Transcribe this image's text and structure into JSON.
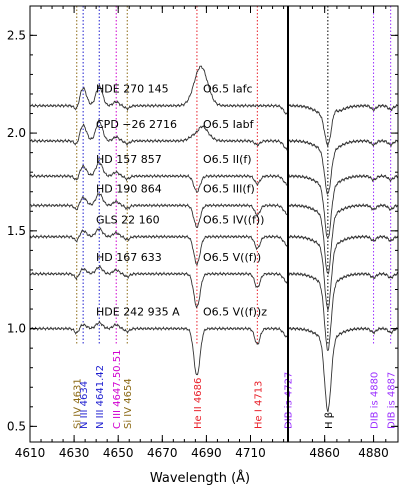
{
  "chart_data": {
    "type": "line",
    "xlabel": "Wavelength (Å)",
    "ylabel": "",
    "panels": [
      {
        "name": "left",
        "xlim": [
          4610,
          4727
        ],
        "xticks": [
          4610,
          4630,
          4650,
          4670,
          4690,
          4710
        ]
      },
      {
        "name": "right",
        "xlim": [
          4845,
          4890
        ],
        "xticks": [
          4860,
          4880
        ]
      }
    ],
    "ylim": [
      0.42,
      2.65
    ],
    "yticks": [
      0.5,
      1.0,
      1.5,
      2.0,
      2.5
    ],
    "grid": false,
    "lines": [
      {
        "label": "Si IV 4631",
        "x": 4631.2,
        "color": "#8B6914"
      },
      {
        "label": "N III 4634",
        "x": 4634.1,
        "color": "#1f1fd0"
      },
      {
        "label": "N III 4641.42",
        "x": 4641.4,
        "color": "#1f1fd0"
      },
      {
        "label": "C III 4647.50.51",
        "x": 4649.1,
        "color": "#d000d0"
      },
      {
        "label": "Si IV 4654",
        "x": 4654.1,
        "color": "#8B6914"
      },
      {
        "label": "He II 4686",
        "x": 4685.7,
        "color": "#e8202a"
      },
      {
        "label": "He I 4713",
        "x": 4713.1,
        "color": "#e8202a"
      },
      {
        "label": "DIB is 4727",
        "x": 4726.8,
        "color": "#9b30ff"
      },
      {
        "label": "H β",
        "x": 4861.3,
        "color": "#000000"
      },
      {
        "label": "DIB is 4880",
        "x": 4880.0,
        "color": "#9b30ff"
      },
      {
        "label": "DIB is 4887",
        "x": 4887.0,
        "color": "#9b30ff"
      }
    ],
    "stars": [
      {
        "name": "HDE 270 145",
        "sptype": "O6.5 Iafc",
        "offset": 1.14,
        "e4634": 0.09,
        "e4641": 0.1,
        "e4686": 0.2,
        "a4686": 0.0,
        "a4713": 0.0,
        "ahb": 0.15,
        "ehb": 0.02
      },
      {
        "name": "CPD −26 2716",
        "sptype": "O6.5 Iabf",
        "offset": 0.96,
        "e4634": 0.08,
        "e4641": 0.1,
        "e4686": 0.08,
        "a4686": 0.02,
        "a4713": 0.02,
        "ahb": 0.22,
        "ehb": 0.0
      },
      {
        "name": "HD 157 857",
        "sptype": "O6.5 II(f)",
        "offset": 0.78,
        "e4634": 0.05,
        "e4641": 0.07,
        "e4686": 0.0,
        "a4686": 0.08,
        "a4713": 0.04,
        "ahb": 0.27,
        "ehb": 0.0
      },
      {
        "name": "HD 190 864",
        "sptype": "O6.5 III(f)",
        "offset": 0.63,
        "e4634": 0.04,
        "e4641": 0.06,
        "e4686": 0.0,
        "a4686": 0.11,
        "a4713": 0.05,
        "ahb": 0.3,
        "ehb": 0.0
      },
      {
        "name": "GLS 22 160",
        "sptype": "O6.5 IV((f))",
        "offset": 0.47,
        "e4634": 0.03,
        "e4641": 0.04,
        "e4686": 0.0,
        "a4686": 0.14,
        "a4713": 0.06,
        "ahb": 0.32,
        "ehb": 0.0
      },
      {
        "name": "HD 167 633",
        "sptype": "O6.5 V((f))",
        "offset": 0.28,
        "e4634": 0.025,
        "e4641": 0.035,
        "e4686": 0.0,
        "a4686": 0.17,
        "a4713": 0.07,
        "ahb": 0.34,
        "ehb": 0.0
      },
      {
        "name": "HDE 242 935 A",
        "sptype": "O6.5 V((f))z",
        "offset": 0.0,
        "e4634": 0.02,
        "e4641": 0.03,
        "e4686": 0.0,
        "a4686": 0.24,
        "a4713": 0.08,
        "ahb": 0.37,
        "ehb": 0.0
      }
    ]
  }
}
